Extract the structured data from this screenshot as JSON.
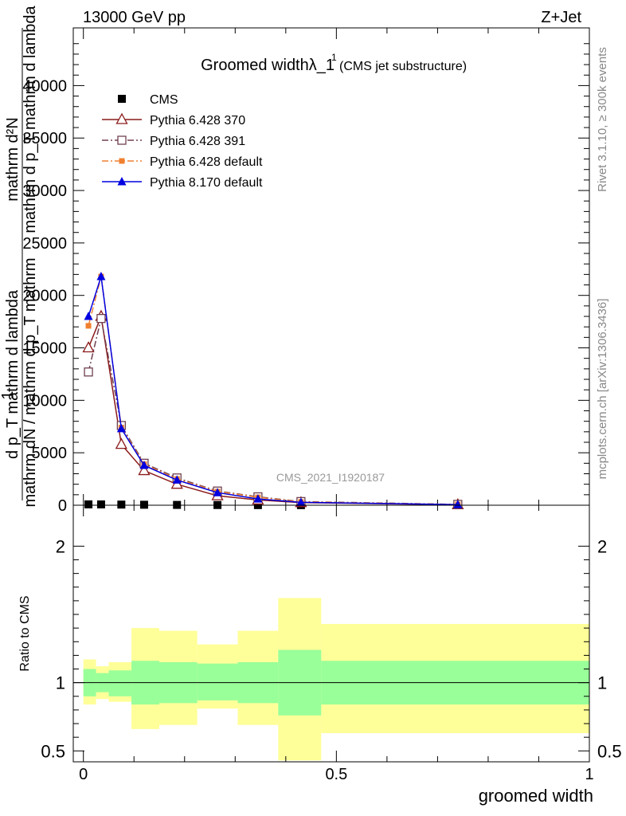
{
  "header": {
    "energy_label": "13000 GeV pp",
    "process_label": "Z+Jet"
  },
  "side_labels": {
    "rivet": "Rivet 3.1.10, ≥ 300k events",
    "mcplots": "mcplots.cern.ch [arXiv:1306.3436]"
  },
  "colors": {
    "cms": "#000000",
    "pythia6_370": "#8b1a1a",
    "pythia6_391": "#704050",
    "pythia6_default": "#f08030",
    "pythia8_default": "#0000e0",
    "band_inner": "#99ff99",
    "band_outer": "#ffff99"
  },
  "chart_data": [
    {
      "type": "line",
      "title_main": "Groomed widthλ_1",
      "title_sup": "1",
      "title_suffix": "(CMS jet substructure)",
      "watermark": "CMS_2021_I1920187",
      "ylabel_numerator": "mathrm d²N",
      "ylabel_denominator": "mathrm d p_T mathrm d lambda",
      "ylabel_fraction_one": "1",
      "ylabel_lines": [
        "mathrm dN / mathrm d p_T mathrm",
        "d p_T mathrm d lambda"
      ],
      "xlim": [
        -0.02,
        1.0
      ],
      "ylim": [
        0,
        45500
      ],
      "y_ticks": [
        0,
        5000,
        10000,
        15000,
        20000,
        25000,
        30000,
        35000,
        40000
      ],
      "y_tick_labels": [
        "0",
        "5000",
        "10000",
        "15000",
        "20000",
        "25000",
        "30000",
        "35000",
        "40000"
      ],
      "x": [
        0.01,
        0.035,
        0.075,
        0.12,
        0.185,
        0.265,
        0.345,
        0.43,
        0.74
      ],
      "series": [
        {
          "name": "CMS",
          "marker": "square-filled",
          "style": "none",
          "color_key": "cms",
          "values": [
            80,
            75,
            60,
            45,
            30,
            20,
            12,
            8,
            2
          ]
        },
        {
          "name": "Pythia 6.428 370",
          "marker": "triangle-open",
          "style": "solid",
          "color_key": "pythia6_370",
          "values": [
            15000,
            18000,
            5800,
            3300,
            2000,
            900,
            500,
            250,
            50
          ]
        },
        {
          "name": "Pythia 6.428 391",
          "marker": "square-open",
          "style": "dashdot",
          "color_key": "pythia6_391",
          "values": [
            12700,
            17800,
            7600,
            4000,
            2600,
            1350,
            800,
            350,
            80
          ]
        },
        {
          "name": "Pythia 6.428 default",
          "marker": "square-filled-small",
          "style": "dashdot",
          "color_key": "pythia6_default",
          "values": [
            17100,
            21800,
            7400,
            3900,
            2500,
            1300,
            750,
            320,
            70
          ]
        },
        {
          "name": "Pythia 8.170 default",
          "marker": "triangle-filled",
          "style": "solid",
          "color_key": "pythia8_default",
          "values": [
            18000,
            21800,
            7300,
            3800,
            2400,
            1200,
            600,
            280,
            60
          ]
        }
      ]
    },
    {
      "type": "area",
      "ylabel": "Ratio to CMS",
      "xlabel": "groomed width",
      "xlim": [
        -0.02,
        1.0
      ],
      "ylim": [
        0.42,
        2.3
      ],
      "y_ticks": [
        0.5,
        1,
        2
      ],
      "y_tick_labels": [
        "0.5",
        "1",
        "2"
      ],
      "x_ticks": [
        0,
        0.5,
        1
      ],
      "x_tick_labels": [
        "0",
        "0.5",
        "1"
      ],
      "bin_edges": [
        0.0,
        0.025,
        0.05,
        0.095,
        0.15,
        0.225,
        0.305,
        0.385,
        0.47,
        1.0
      ],
      "inner_band": {
        "low": [
          0.9,
          0.93,
          0.9,
          0.84,
          0.85,
          0.87,
          0.85,
          0.76,
          0.84
        ],
        "high": [
          1.1,
          1.07,
          1.09,
          1.16,
          1.15,
          1.14,
          1.15,
          1.24,
          1.16
        ]
      },
      "outer_band": {
        "low": [
          0.84,
          0.88,
          0.86,
          0.66,
          0.69,
          0.81,
          0.69,
          0.43,
          0.63
        ],
        "high": [
          1.17,
          1.12,
          1.15,
          1.4,
          1.38,
          1.28,
          1.38,
          1.62,
          1.43
        ]
      },
      "reference_line": 1
    }
  ]
}
